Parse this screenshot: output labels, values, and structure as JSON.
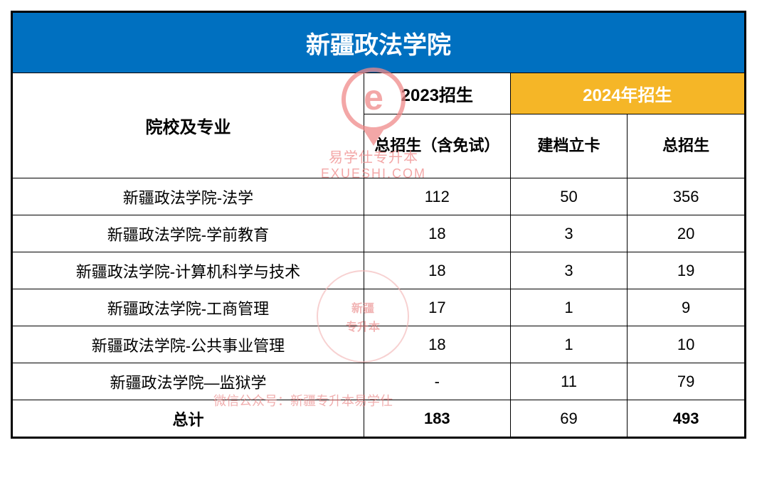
{
  "title": "新疆政法学院",
  "headers": {
    "major": "院校及专业",
    "y2023": "2023招生",
    "y2024": "2024年招生",
    "sub2023": "总招生（含免试）",
    "sub_jd": "建档立卡",
    "sub_total": "总招生"
  },
  "rows": [
    {
      "major": "新疆政法学院-法学",
      "y2023": "112",
      "jd": "50",
      "total": "356"
    },
    {
      "major": "新疆政法学院-学前教育",
      "y2023": "18",
      "jd": "3",
      "total": "20"
    },
    {
      "major": "新疆政法学院-计算机科学与技术",
      "y2023": "18",
      "jd": "3",
      "total": "19"
    },
    {
      "major": "新疆政法学院-工商管理",
      "y2023": "17",
      "jd": "1",
      "total": "9"
    },
    {
      "major": "新疆政法学院-公共事业管理",
      "y2023": "18",
      "jd": "1",
      "total": "10"
    },
    {
      "major": "新疆政法学院—监狱学",
      "y2023": "-",
      "jd": "11",
      "total": "79"
    }
  ],
  "totals": {
    "label": "总计",
    "y2023": "183",
    "jd": "69",
    "total": "493"
  },
  "watermark": {
    "brand_cn": "易学仕专升本",
    "brand_en": "EXUESHI.COM",
    "stamp_line1": "新疆",
    "stamp_line2": "专升本",
    "footer": "微信公众号：新疆专升本易学仕"
  },
  "colors": {
    "title_bg": "#0070c0",
    "title_fg": "#ffffff",
    "highlight_bg": "#f5b627",
    "highlight_fg": "#ffffff",
    "border": "#000000",
    "watermark": "#f08a8a"
  }
}
